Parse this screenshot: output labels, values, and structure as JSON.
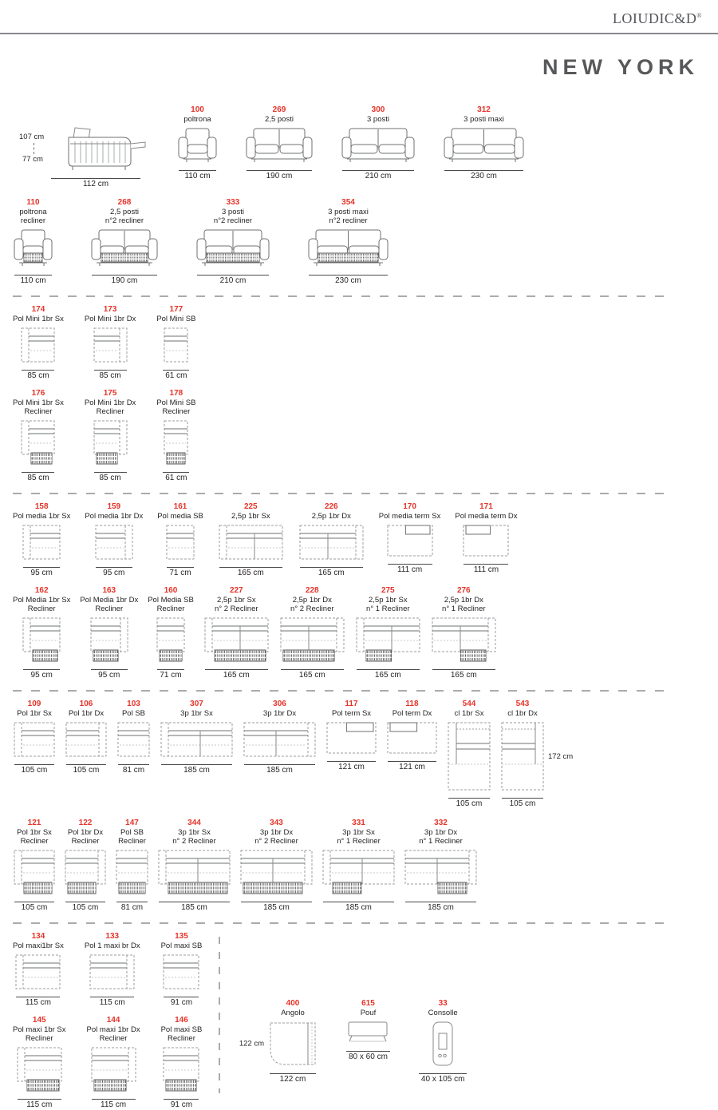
{
  "header": {
    "logo": "LOIUDIC&D",
    "logo_mark": "®",
    "title": "NEW YORK"
  },
  "side_view": {
    "height": "107 cm",
    "seat_height": "77 cm",
    "depth": "112 cm"
  },
  "colors": {
    "accent_red": "#e63329",
    "text_dark": "#231f20",
    "title_gray": "#57585a",
    "divider_gray": "#a9abae"
  },
  "sections": [
    {
      "id": "s1",
      "rows": [
        {
          "items": [
            {
              "code": "100",
              "name": [
                "poltrona"
              ],
              "width": "110 cm",
              "diagram": {
                "kind": "front",
                "cm": 110,
                "seats": 1
              }
            },
            {
              "code": "269",
              "name": [
                "2,5 posti"
              ],
              "width": "190 cm",
              "diagram": {
                "kind": "front",
                "cm": 190,
                "seats": 2
              }
            },
            {
              "code": "300",
              "name": [
                "3 posti"
              ],
              "width": "210 cm",
              "diagram": {
                "kind": "front",
                "cm": 210,
                "seats": 2
              }
            },
            {
              "code": "312",
              "name": [
                "3 posti maxi"
              ],
              "width": "230 cm",
              "diagram": {
                "kind": "front",
                "cm": 230,
                "seats": 2
              }
            }
          ]
        },
        {
          "items": [
            {
              "code": "110",
              "name": [
                "poltrona",
                "recliner"
              ],
              "width": "110 cm",
              "diagram": {
                "kind": "front",
                "cm": 110,
                "seats": 1,
                "recliner": "full"
              }
            },
            {
              "code": "268",
              "name": [
                "2,5 posti",
                "n°2 recliner"
              ],
              "width": "190 cm",
              "diagram": {
                "kind": "front",
                "cm": 190,
                "seats": 2,
                "recliner": "full"
              }
            },
            {
              "code": "333",
              "name": [
                "3 posti",
                "n°2 recliner"
              ],
              "width": "210 cm",
              "diagram": {
                "kind": "front",
                "cm": 210,
                "seats": 2,
                "recliner": "full"
              }
            },
            {
              "code": "354",
              "name": [
                "3 posti maxi",
                "n°2 recliner"
              ],
              "width": "230 cm",
              "diagram": {
                "kind": "front",
                "cm": 230,
                "seats": 2,
                "recliner": "full"
              }
            }
          ]
        }
      ]
    },
    {
      "id": "s2",
      "rows": [
        {
          "items": [
            {
              "code": "174",
              "name": [
                "Pol Mini 1br Sx"
              ],
              "width": "85 cm",
              "diagram": {
                "kind": "top",
                "cm": 85,
                "arm": "sx"
              }
            },
            {
              "code": "173",
              "name": [
                "Pol Mini 1br Dx"
              ],
              "width": "85 cm",
              "diagram": {
                "kind": "top",
                "cm": 85,
                "arm": "dx"
              }
            },
            {
              "code": "177",
              "name": [
                "Pol Mini SB"
              ],
              "width": "61 cm",
              "diagram": {
                "kind": "top",
                "cm": 61
              }
            }
          ]
        },
        {
          "items": [
            {
              "code": "176",
              "name": [
                "Pol Mini 1br Sx",
                "Recliner"
              ],
              "width": "85 cm",
              "diagram": {
                "kind": "top",
                "cm": 85,
                "arm": "sx",
                "recliner": "full"
              }
            },
            {
              "code": "175",
              "name": [
                "Pol Mini 1br Dx",
                "Recliner"
              ],
              "width": "85 cm",
              "diagram": {
                "kind": "top",
                "cm": 85,
                "arm": "dx",
                "recliner": "full"
              }
            },
            {
              "code": "178",
              "name": [
                "Pol Mini SB",
                "Recliner"
              ],
              "width": "61 cm",
              "diagram": {
                "kind": "top",
                "cm": 61,
                "recliner": "full"
              }
            }
          ]
        }
      ]
    },
    {
      "id": "s3",
      "rows": [
        {
          "items": [
            {
              "code": "158",
              "name": [
                "Pol media 1br Sx"
              ],
              "width": "95 cm",
              "diagram": {
                "kind": "top",
                "cm": 95,
                "arm": "sx"
              }
            },
            {
              "code": "159",
              "name": [
                "Pol media 1br Dx"
              ],
              "width": "95 cm",
              "diagram": {
                "kind": "top",
                "cm": 95,
                "arm": "dx"
              }
            },
            {
              "code": "161",
              "name": [
                "Pol media SB"
              ],
              "width": "71 cm",
              "diagram": {
                "kind": "top",
                "cm": 71
              }
            },
            {
              "code": "225",
              "name": [
                "2,5p 1br Sx"
              ],
              "width": "165 cm",
              "diagram": {
                "kind": "top",
                "cm": 165,
                "arm": "sx",
                "seats": 2
              }
            },
            {
              "code": "226",
              "name": [
                "2,5p 1br Dx"
              ],
              "width": "165 cm",
              "diagram": {
                "kind": "top",
                "cm": 165,
                "arm": "dx",
                "seats": 2
              }
            },
            {
              "code": "170",
              "name": [
                "Pol media term Sx"
              ],
              "width": "111 cm",
              "diagram": {
                "kind": "term",
                "cm": 111,
                "arm": "sx"
              }
            },
            {
              "code": "171",
              "name": [
                "Pol media term Dx"
              ],
              "width": "111 cm",
              "diagram": {
                "kind": "term",
                "cm": 111,
                "arm": "dx"
              }
            }
          ]
        },
        {
          "items": [
            {
              "code": "162",
              "name": [
                "Pol Media 1br Sx",
                "Recliner"
              ],
              "width": "95 cm",
              "diagram": {
                "kind": "top",
                "cm": 95,
                "arm": "sx",
                "recliner": "full"
              }
            },
            {
              "code": "163",
              "name": [
                "Pol Media 1br Dx",
                "Recliner"
              ],
              "width": "95 cm",
              "diagram": {
                "kind": "top",
                "cm": 95,
                "arm": "dx",
                "recliner": "full"
              }
            },
            {
              "code": "160",
              "name": [
                "Pol Media SB",
                "Recliner"
              ],
              "width": "71 cm",
              "diagram": {
                "kind": "top",
                "cm": 71,
                "recliner": "full"
              }
            },
            {
              "code": "227",
              "name": [
                "2,5p 1br Sx",
                "n° 2 Recliner"
              ],
              "width": "165 cm",
              "diagram": {
                "kind": "top",
                "cm": 165,
                "arm": "sx",
                "seats": 2,
                "recliner": "full"
              }
            },
            {
              "code": "228",
              "name": [
                "2,5p 1br Dx",
                "n° 2 Recliner"
              ],
              "width": "165 cm",
              "diagram": {
                "kind": "top",
                "cm": 165,
                "arm": "dx",
                "seats": 2,
                "recliner": "full"
              }
            },
            {
              "code": "275",
              "name": [
                "2,5p 1br Sx",
                "n° 1 Recliner"
              ],
              "width": "165 cm",
              "diagram": {
                "kind": "top",
                "cm": 165,
                "arm": "sx",
                "seats": 2,
                "recliner": "partial"
              }
            },
            {
              "code": "276",
              "name": [
                "2,5p 1br Dx",
                "n° 1 Recliner"
              ],
              "width": "165 cm",
              "diagram": {
                "kind": "top",
                "cm": 165,
                "arm": "dx",
                "seats": 2,
                "recliner": "partial"
              }
            }
          ]
        }
      ]
    },
    {
      "id": "s4",
      "rows": [
        {
          "items": [
            {
              "code": "109",
              "name": [
                "Pol 1br Sx"
              ],
              "width": "105 cm",
              "diagram": {
                "kind": "top",
                "cm": 105,
                "arm": "sx"
              }
            },
            {
              "code": "106",
              "name": [
                "Pol 1br Dx"
              ],
              "width": "105 cm",
              "diagram": {
                "kind": "top",
                "cm": 105,
                "arm": "dx"
              }
            },
            {
              "code": "103",
              "name": [
                "Pol SB"
              ],
              "width": "81 cm",
              "diagram": {
                "kind": "top",
                "cm": 81
              }
            },
            {
              "code": "307",
              "name": [
                "3p 1br Sx"
              ],
              "width": "185 cm",
              "diagram": {
                "kind": "top",
                "cm": 185,
                "arm": "sx",
                "seats": 2
              }
            },
            {
              "code": "306",
              "name": [
                "3p 1br Dx"
              ],
              "width": "185 cm",
              "diagram": {
                "kind": "top",
                "cm": 185,
                "arm": "dx",
                "seats": 2
              }
            },
            {
              "code": "117",
              "name": [
                "Pol term Sx"
              ],
              "width": "121 cm",
              "diagram": {
                "kind": "term",
                "cm": 121,
                "arm": "sx"
              }
            },
            {
              "code": "118",
              "name": [
                "Pol term Dx"
              ],
              "width": "121 cm",
              "diagram": {
                "kind": "term",
                "cm": 121,
                "arm": "dx"
              }
            },
            {
              "code": "544",
              "name": [
                "cl 1br Sx"
              ],
              "width": "105 cm",
              "diagram": {
                "kind": "cl",
                "cm": 105,
                "arm": "sx"
              }
            },
            {
              "code": "543",
              "name": [
                "cl 1br Dx"
              ],
              "width": "105 cm",
              "side": "172 cm",
              "diagram": {
                "kind": "cl",
                "cm": 105,
                "arm": "dx"
              }
            }
          ]
        },
        {
          "items": [
            {
              "code": "121",
              "name": [
                "Pol 1br Sx",
                "Recliner"
              ],
              "width": "105 cm",
              "diagram": {
                "kind": "top",
                "cm": 105,
                "arm": "sx",
                "recliner": "full"
              }
            },
            {
              "code": "122",
              "name": [
                "Pol 1br Dx",
                "Recliner"
              ],
              "width": "105 cm",
              "diagram": {
                "kind": "top",
                "cm": 105,
                "arm": "dx",
                "recliner": "full"
              }
            },
            {
              "code": "147",
              "name": [
                "Pol SB",
                "Recliner"
              ],
              "width": "81 cm",
              "diagram": {
                "kind": "top",
                "cm": 81,
                "recliner": "full"
              }
            },
            {
              "code": "344",
              "name": [
                "3p 1br Sx",
                "n° 2 Recliner"
              ],
              "width": "185 cm",
              "diagram": {
                "kind": "top",
                "cm": 185,
                "arm": "sx",
                "seats": 2,
                "recliner": "full"
              }
            },
            {
              "code": "343",
              "name": [
                "3p 1br Dx",
                "n° 2 Recliner"
              ],
              "width": "185 cm",
              "diagram": {
                "kind": "top",
                "cm": 185,
                "arm": "dx",
                "seats": 2,
                "recliner": "full"
              }
            },
            {
              "code": "331",
              "name": [
                "3p 1br Sx",
                "n° 1 Recliner"
              ],
              "width": "185 cm",
              "diagram": {
                "kind": "top",
                "cm": 185,
                "arm": "sx",
                "seats": 2,
                "recliner": "partial"
              }
            },
            {
              "code": "332",
              "name": [
                "3p 1br Dx",
                "n° 1 Recliner"
              ],
              "width": "185 cm",
              "diagram": {
                "kind": "top",
                "cm": 185,
                "arm": "dx",
                "seats": 2,
                "recliner": "partial"
              }
            }
          ]
        }
      ]
    },
    {
      "id": "s5",
      "rows": [
        {
          "items": [
            {
              "code": "134",
              "name": [
                "Pol maxi1br Sx"
              ],
              "width": "115 cm",
              "diagram": {
                "kind": "top",
                "cm": 115,
                "arm": "sx"
              }
            },
            {
              "code": "133",
              "name": [
                "Pol 1 maxi br Dx"
              ],
              "width": "115 cm",
              "diagram": {
                "kind": "top",
                "cm": 115,
                "arm": "dx"
              }
            },
            {
              "code": "135",
              "name": [
                "Pol maxi SB"
              ],
              "width": "91 cm",
              "diagram": {
                "kind": "top",
                "cm": 91
              }
            }
          ]
        },
        {
          "items": [
            {
              "code": "145",
              "name": [
                "Pol maxi 1br Sx",
                "Recliner"
              ],
              "width": "115 cm",
              "diagram": {
                "kind": "top",
                "cm": 115,
                "arm": "sx",
                "recliner": "full"
              }
            },
            {
              "code": "144",
              "name": [
                "Pol maxi 1br Dx",
                "Recliner"
              ],
              "width": "115 cm",
              "diagram": {
                "kind": "top",
                "cm": 115,
                "arm": "dx",
                "recliner": "full"
              }
            },
            {
              "code": "146",
              "name": [
                "Pol maxi SB",
                "Recliner"
              ],
              "width": "91 cm",
              "diagram": {
                "kind": "top",
                "cm": 91,
                "recliner": "full"
              }
            }
          ]
        }
      ]
    }
  ],
  "accessories": {
    "items": [
      {
        "code": "400",
        "name": [
          "Angolo"
        ],
        "width": "122 cm",
        "side": "122 cm",
        "side_pos": "left",
        "diagram": {
          "kind": "angolo"
        }
      },
      {
        "code": "615",
        "name": [
          "Pouf"
        ],
        "width": "80 x 60 cm",
        "diagram": {
          "kind": "pouf"
        }
      },
      {
        "code": "33",
        "name": [
          "Consolle"
        ],
        "width": "40 x 105 cm",
        "diagram": {
          "kind": "consolle"
        }
      }
    ]
  }
}
